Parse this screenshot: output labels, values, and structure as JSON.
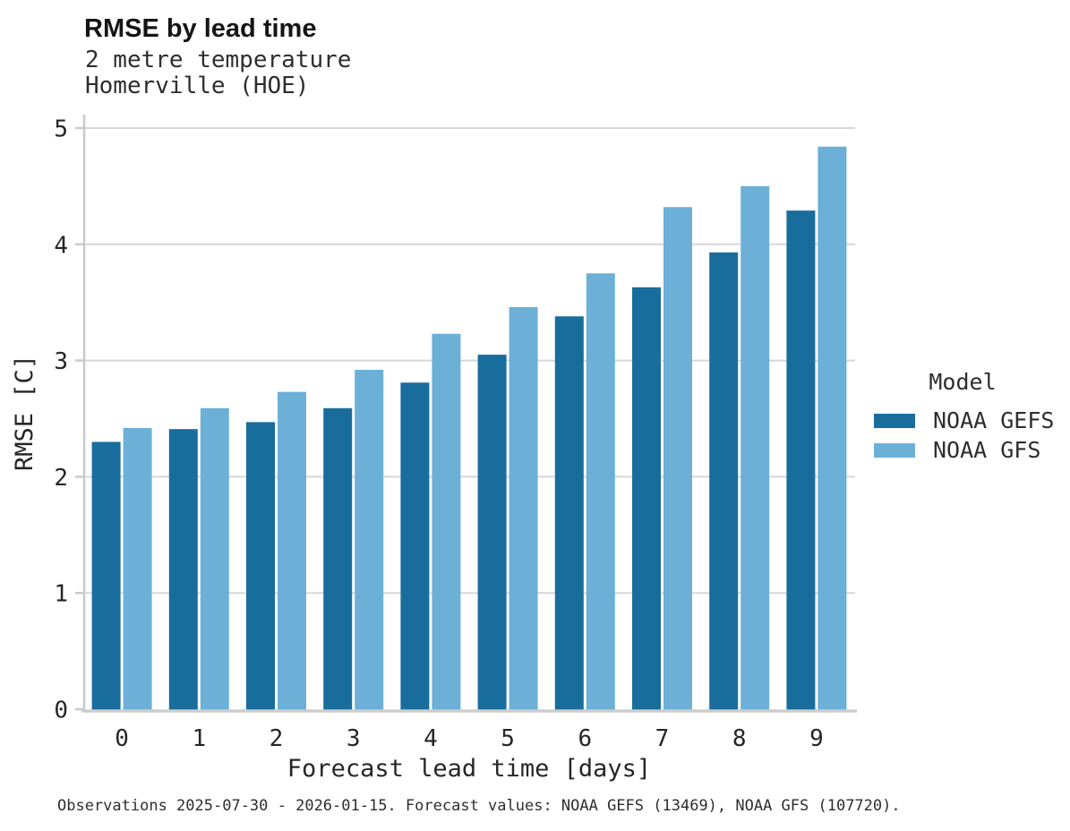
{
  "header": {
    "title": "RMSE by lead time",
    "subtitle_line1": "2 metre temperature",
    "subtitle_line2": "Homerville (HOE)"
  },
  "chart_data": {
    "type": "bar",
    "title": "RMSE by lead time",
    "subtitle": [
      "2 metre temperature",
      "Homerville (HOE)"
    ],
    "categories": [
      "0",
      "1",
      "2",
      "3",
      "4",
      "5",
      "6",
      "7",
      "8",
      "9"
    ],
    "series": [
      {
        "name": "NOAA GEFS",
        "color": "#196d9c",
        "values": [
          2.3,
          2.41,
          2.47,
          2.59,
          2.81,
          3.05,
          3.38,
          3.63,
          3.93,
          4.29
        ]
      },
      {
        "name": "NOAA GFS",
        "color": "#6cb0d8",
        "values": [
          2.42,
          2.59,
          2.73,
          2.92,
          3.23,
          3.46,
          3.75,
          4.32,
          4.5,
          4.84
        ]
      }
    ],
    "xlabel": "Forecast lead time [days]",
    "ylabel": "RMSE [C]",
    "ylim": [
      0,
      5
    ],
    "yticks": [
      0,
      1,
      2,
      3,
      4,
      5
    ],
    "grid": true,
    "grid_color": "#d7d7d7",
    "axis_color": "#c9c9c9",
    "text_color": "#262626",
    "legend_position": "right"
  },
  "legend": {
    "title": "Model",
    "items": [
      {
        "label": "NOAA GEFS",
        "color": "#196d9c"
      },
      {
        "label": "NOAA GFS",
        "color": "#6cb0d8"
      }
    ]
  },
  "caption": "Observations 2025-07-30 - 2026-01-15. Forecast values: NOAA GEFS (13469), NOAA GFS (107720)."
}
